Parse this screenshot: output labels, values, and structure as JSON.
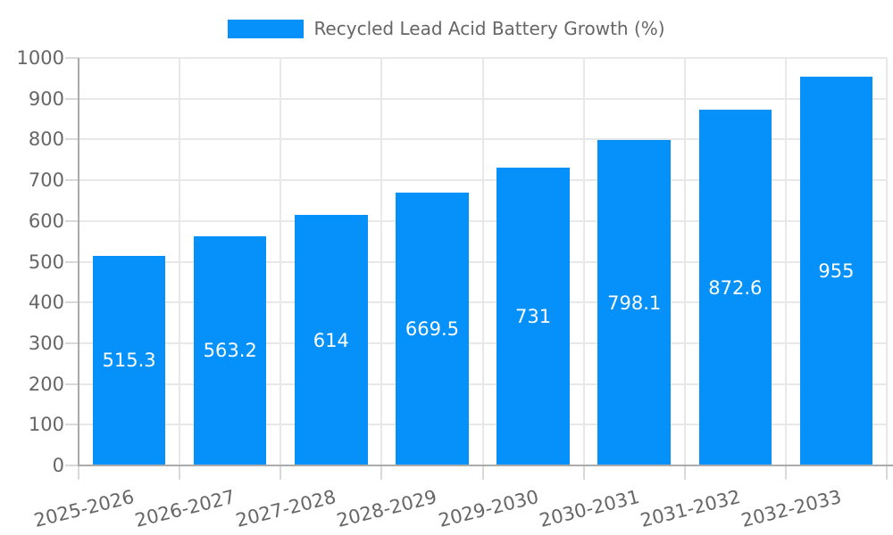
{
  "legend": {
    "label": "Recycled Lead Acid Battery Growth (%)",
    "swatch_color": "#0591F9"
  },
  "chart_data": {
    "type": "bar",
    "title": "Recycled Lead Acid Battery Growth (%)",
    "categories": [
      "2025-2026",
      "2026-2027",
      "2027-2028",
      "2028-2029",
      "2029-2030",
      "2030-2031",
      "2031-2032",
      "2032-2033"
    ],
    "values": [
      515.3,
      563.2,
      614,
      669.5,
      731,
      798.1,
      872.6,
      955
    ],
    "value_labels": [
      "515.3",
      "563.2",
      "614",
      "669.5",
      "731",
      "798.1",
      "872.6",
      "955"
    ],
    "xlabel": "",
    "ylabel": "",
    "ylim": [
      0,
      1000
    ],
    "ytick_interval": 100,
    "ytick_labels": [
      "0",
      "100",
      "200",
      "300",
      "400",
      "500",
      "600",
      "700",
      "800",
      "900",
      "1000"
    ],
    "grid": true,
    "legend_position": "top-center",
    "bar_color": "#0591F9",
    "value_label_color": "#ffffff",
    "grid_color": "#e8e8e8",
    "axis_color": "#ababab",
    "tick_color": "#d9d9d9",
    "tick_label_color": "#666666"
  }
}
